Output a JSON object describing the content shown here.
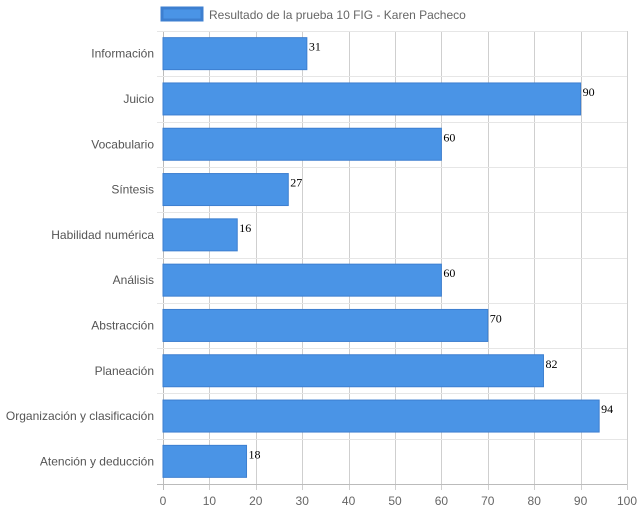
{
  "chart_data": {
    "type": "bar",
    "orientation": "horizontal",
    "categories": [
      "Información",
      "Juicio",
      "Vocabulario",
      "Síntesis",
      "Habilidad numérica",
      "Análisis",
      "Abstracción",
      "Planeación",
      "Organización y clasificación",
      "Atención y deducción"
    ],
    "series": [
      {
        "name": "Resultado de la prueba 10 FIG - Karen Pacheco",
        "values": [
          31,
          90,
          60,
          27,
          16,
          60,
          70,
          82,
          94,
          18
        ],
        "color": "#4a94e6",
        "border_color": "#3d7fd0"
      }
    ],
    "xlim": [
      0,
      100
    ],
    "x_ticks": [
      0,
      10,
      20,
      30,
      40,
      50,
      60,
      70,
      80,
      90,
      100
    ],
    "grid": true,
    "legend_position": "top",
    "data_labels": true
  }
}
